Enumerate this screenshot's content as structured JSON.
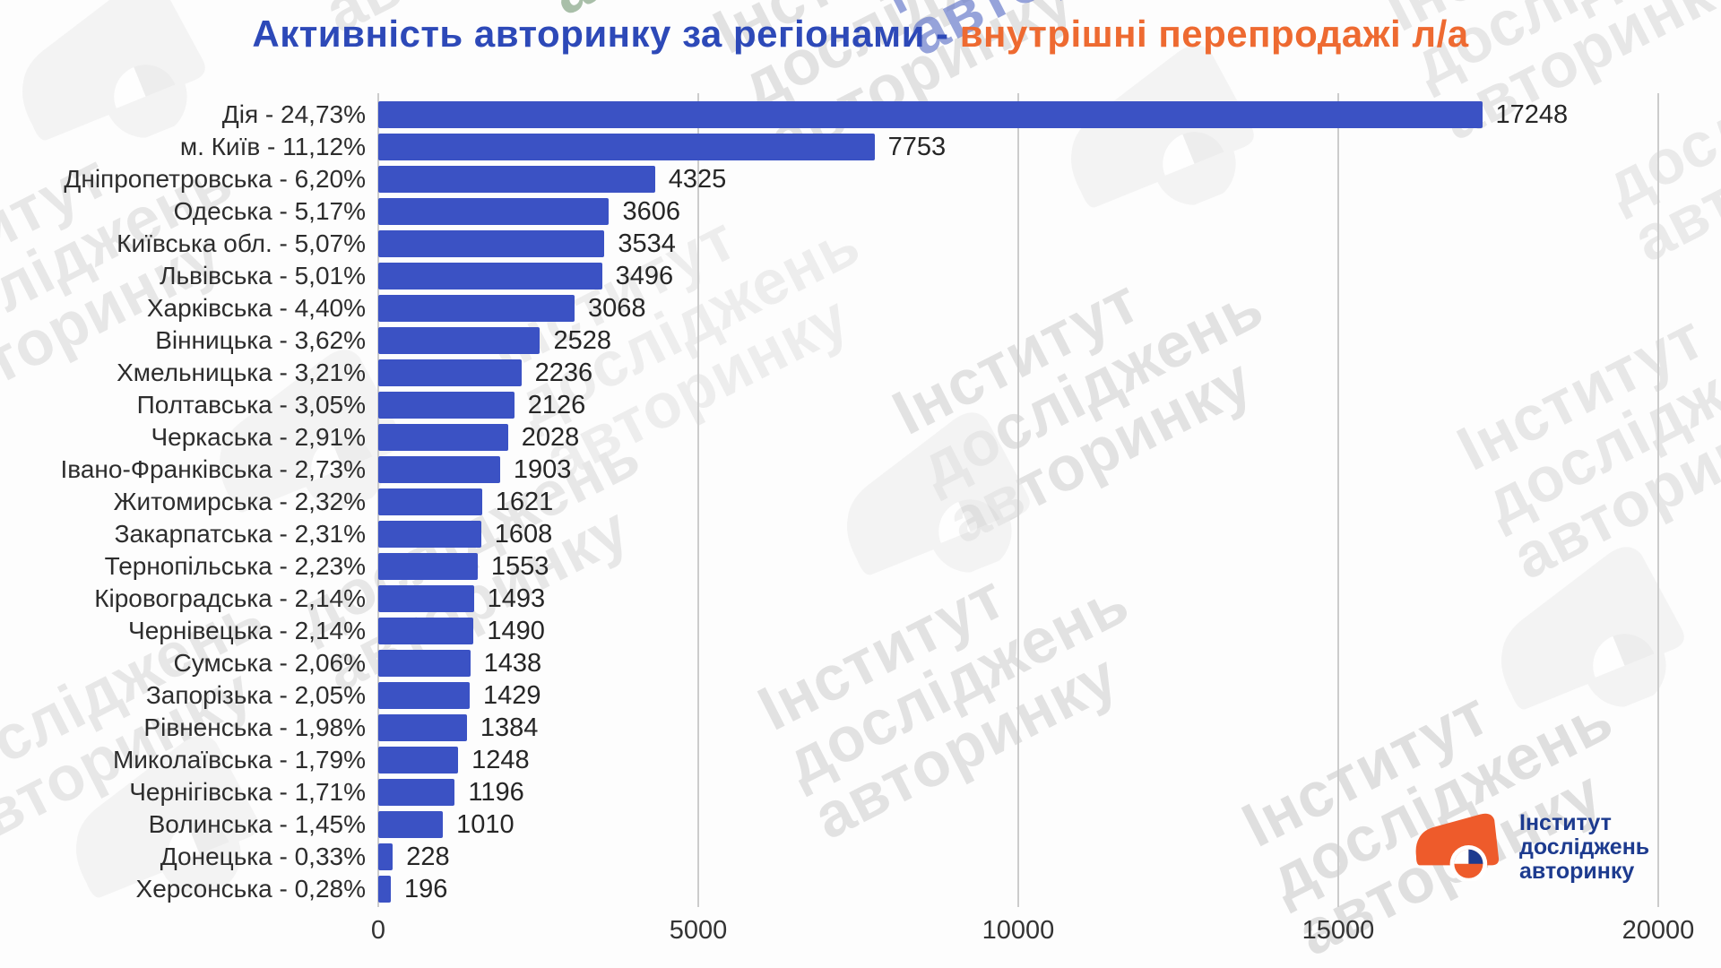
{
  "title": {
    "part_blue": "Активність авторинку за регіонами - ",
    "part_orange": "внутрішні перепродажі л/а"
  },
  "colors": {
    "bar": "#3b52c4",
    "title_blue": "#2d49b8",
    "title_orange": "#ee6a31",
    "grid": "#cccccc",
    "logo_navy": "#1d3b8f",
    "logo_orange": "#ee5b2b",
    "watermark_gray": "#e7e7e7"
  },
  "chart_data": {
    "type": "bar",
    "orientation": "horizontal",
    "title": "Активність авторинку за регіонами - внутрішні перепродажі л/а",
    "categories": [
      "Дія - 24,73%",
      "м. Київ - 11,12%",
      "Дніпропетровська - 6,20%",
      "Одеська - 5,17%",
      "Київська обл. - 5,07%",
      "Львівська - 5,01%",
      "Харківська - 4,40%",
      "Вінницька - 3,62%",
      "Хмельницька - 3,21%",
      "Полтавська - 3,05%",
      "Черкаська - 2,91%",
      "Івано-Франківська - 2,73%",
      "Житомирська - 2,32%",
      "Закарпатська - 2,31%",
      "Тернопільська - 2,23%",
      "Кіровоградська - 2,14%",
      "Чернівецька - 2,14%",
      "Сумська - 2,06%",
      "Запорізька - 2,05%",
      "Рівненська - 1,98%",
      "Миколаївська - 1,79%",
      "Чернігівська - 1,71%",
      "Волинська - 1,45%",
      "Донецька - 0,33%",
      "Херсонська - 0,28%"
    ],
    "values": [
      17248,
      7753,
      4325,
      3606,
      3534,
      3496,
      3068,
      2528,
      2236,
      2126,
      2028,
      1903,
      1621,
      1608,
      1553,
      1493,
      1490,
      1438,
      1429,
      1384,
      1248,
      1196,
      1010,
      228,
      196
    ],
    "xlabel": "",
    "ylabel": "",
    "xticks": [
      0,
      5000,
      10000,
      15000,
      20000
    ],
    "xlim": [
      0,
      20000
    ],
    "grid": "vertical",
    "value_labels_shown": true,
    "legend": "none"
  },
  "logo": {
    "lines": [
      "Інститут",
      "досліджень",
      "авторинку"
    ]
  },
  "watermark": {
    "lines": [
      "Інститут",
      "досліджень",
      "авторинку"
    ]
  }
}
